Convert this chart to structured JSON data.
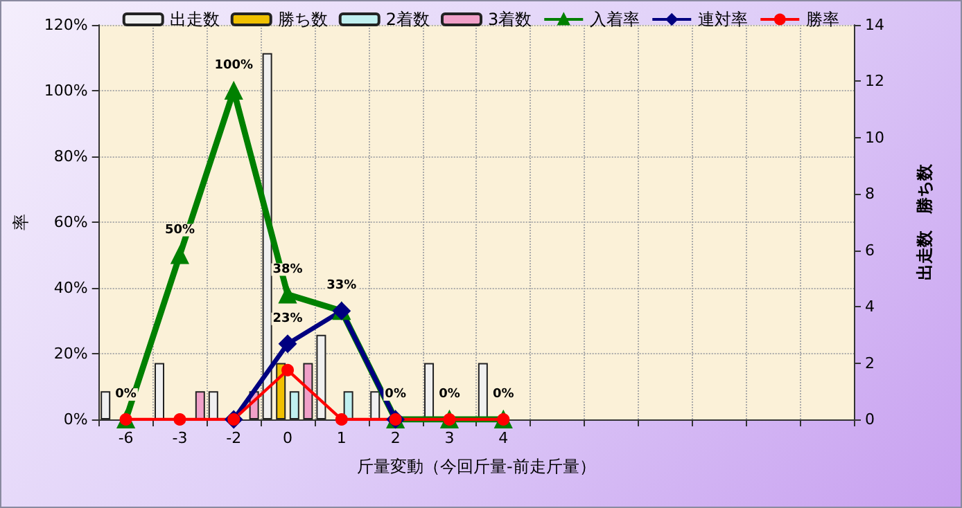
{
  "chart_data": {
    "type": "bar",
    "xlabel": "斤量変動（今回斤量-前走斤量）",
    "ylabel": "率",
    "y2label": "出走数　勝ち数",
    "categories": [
      "-6",
      "-3",
      "-2",
      "0",
      "1",
      "2",
      "3",
      "4",
      null,
      null,
      null,
      null,
      null,
      null
    ],
    "series": [
      {
        "name": "出走数",
        "axis": "y2",
        "color": "#f0f0f0",
        "values": [
          1,
          2,
          1,
          13,
          3,
          1,
          2,
          2,
          null,
          null,
          null,
          null,
          null,
          null
        ]
      },
      {
        "name": "勝ち数",
        "axis": "y2",
        "color": "#f0c000",
        "values": [
          null,
          null,
          null,
          2,
          null,
          null,
          null,
          null,
          null,
          null,
          null,
          null,
          null,
          null
        ]
      },
      {
        "name": "2着数",
        "axis": "y2",
        "color": "#c0f0f0",
        "values": [
          null,
          null,
          null,
          1,
          1,
          null,
          null,
          null,
          null,
          null,
          null,
          null,
          null,
          null
        ]
      },
      {
        "name": "3着数",
        "axis": "y2",
        "color": "#f0a0c8",
        "values": [
          null,
          1,
          1,
          2,
          null,
          null,
          null,
          null,
          null,
          null,
          null,
          null,
          null,
          null
        ]
      },
      {
        "name": "入着率",
        "type": "line",
        "marker": "triangle",
        "color": "#008000",
        "values": [
          0,
          50,
          100,
          38,
          33,
          0,
          0,
          0,
          null,
          null,
          null,
          null,
          null,
          null
        ],
        "value_labels": [
          "0%",
          "50%",
          "100%",
          "38%",
          "33%",
          "0%",
          "0%",
          "0%",
          null,
          null,
          null,
          null,
          null,
          null
        ]
      },
      {
        "name": "連対率",
        "type": "line",
        "marker": "diamond",
        "color": "#000080",
        "values": [
          null,
          null,
          0,
          23,
          33,
          0,
          null,
          null,
          null,
          null,
          null,
          null,
          null,
          null
        ],
        "value_labels": [
          null,
          null,
          null,
          "23%",
          null,
          null,
          null,
          null,
          null,
          null,
          null,
          null,
          null,
          null
        ]
      },
      {
        "name": "勝率",
        "type": "line",
        "marker": "circle",
        "color": "#ff0000",
        "values": [
          0,
          0,
          0,
          15,
          0,
          0,
          0,
          0,
          null,
          null,
          null,
          null,
          null,
          null
        ]
      }
    ],
    "ylim": [
      0,
      120
    ],
    "yticks": [
      {
        "value": 0,
        "label": "0%"
      },
      {
        "value": 20,
        "label": "20%"
      },
      {
        "value": 40,
        "label": "40%"
      },
      {
        "value": 60,
        "label": "60%"
      },
      {
        "value": 80,
        "label": "80%"
      },
      {
        "value": 100,
        "label": "100%"
      },
      {
        "value": 120,
        "label": "120%"
      }
    ],
    "y2lim": [
      0,
      14
    ],
    "y2ticks": [
      0,
      2,
      4,
      6,
      8,
      10,
      12,
      14
    ],
    "grid": true,
    "legend": "top"
  }
}
